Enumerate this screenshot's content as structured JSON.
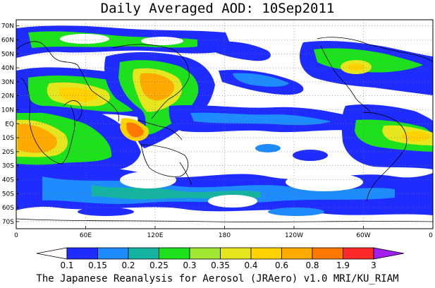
{
  "title": "Daily Averaged AOD: 10Sep2011",
  "footer": "The Japanese Reanalysis for Aerosol (JRAero) v1.0 MRI/KU_RIAM",
  "map": {
    "lat_labels": [
      "70N",
      "60N",
      "50N",
      "40N",
      "30N",
      "20N",
      "10N",
      "EQ",
      "10S",
      "20S",
      "30S",
      "40S",
      "50S",
      "60S",
      "70S"
    ],
    "lon_labels": [
      "0",
      "60E",
      "120E",
      "180",
      "120W",
      "60W",
      "0"
    ]
  },
  "colorbar": {
    "labels": [
      "0.1",
      "0.15",
      "0.2",
      "0.25",
      "0.3",
      "0.35",
      "0.4",
      "0.6",
      "0.8",
      "1.9",
      "3"
    ],
    "colors": [
      "#ffffff",
      "#1e2cff",
      "#1e8cff",
      "#14b4a0",
      "#1ee11e",
      "#a0e632",
      "#e6e61e",
      "#ffd200",
      "#ffaa00",
      "#ff7800",
      "#ff2828",
      "#a020f0"
    ]
  }
}
